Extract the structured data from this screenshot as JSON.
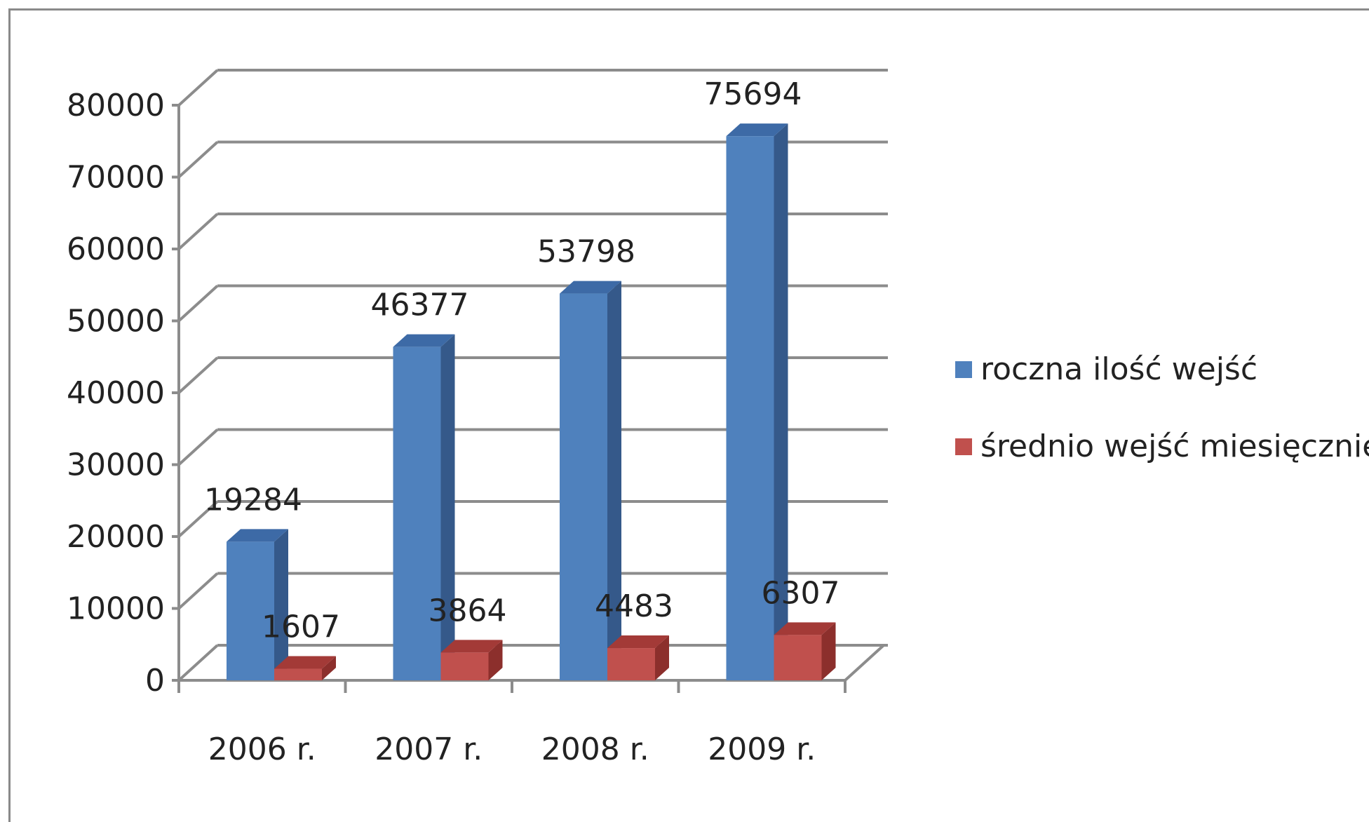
{
  "chart_data": {
    "type": "bar",
    "categories": [
      "2006 r.",
      "2007 r.",
      "2008 r.",
      "2009 r."
    ],
    "series": [
      {
        "name": "roczna ilość wejść",
        "values": [
          19284,
          46377,
          53798,
          75694
        ],
        "color": "#4f81bd",
        "side_color": "#35598a",
        "top_color": "#3d6aa6"
      },
      {
        "name": "średnio wejść miesięcznie",
        "values": [
          1607,
          3864,
          4483,
          6307
        ],
        "color": "#c0504d",
        "side_color": "#8c2f2c",
        "top_color": "#a33a37"
      }
    ],
    "data_labels": [
      [
        "19284",
        "46377",
        "53798",
        "75694"
      ],
      [
        "1607",
        "3864",
        "4483",
        "6307"
      ]
    ],
    "y_ticks": [
      0,
      10000,
      20000,
      30000,
      40000,
      50000,
      60000,
      70000,
      80000
    ],
    "ylim": [
      0,
      80000
    ],
    "grid": true,
    "legend_position": "right",
    "gridline_color": "#8c8c8c",
    "title": "",
    "xlabel": "",
    "ylabel": ""
  }
}
